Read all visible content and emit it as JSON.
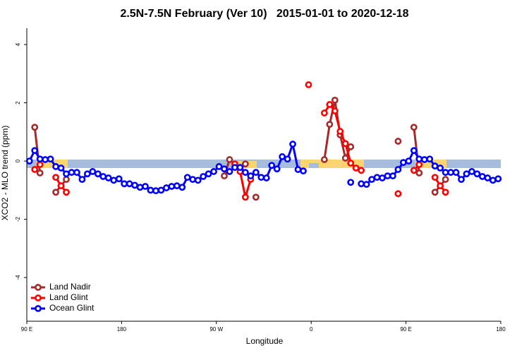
{
  "chart_data": {
    "type": "line",
    "title": "2.5N-7.5N February (Ver 10)   2015-01-01 to 2020-12-18",
    "x_label": "Longitude",
    "y_label": "XCO2 - MLO trend (ppm)",
    "xlim": [
      90,
      540
    ],
    "ylim": [
      -5.5,
      4.56
    ],
    "xticks": [
      {
        "value": 90,
        "label": "90 E"
      },
      180,
      {
        "value": 270,
        "label": "90 W"
      },
      {
        "value": 360,
        "label": "0"
      },
      {
        "value": 450,
        "label": "90 E"
      },
      {
        "value": 540,
        "label": "180"
      }
    ],
    "yticks": [
      -4,
      -2,
      0,
      2,
      4
    ],
    "legend": "bottom-left",
    "series": [
      {
        "name": "Land Nadir",
        "color": "#a52a2a",
        "x": [
          97.5,
          102.5,
          107.5,
          117.5,
          127.5,
          272.5,
          277.5,
          282.5,
          287.5,
          297.5,
          302.5,
          307.5,
          367.5,
          372.5,
          377.5,
          382.5,
          387.5,
          392.5,
          397.5,
          437.5,
          442.5,
          447.5,
          457.5,
          462.5,
          467.5,
          477.5,
          487.5
        ],
        "values": [
          1.16,
          -0.41,
          null,
          -1.07,
          -0.63,
          null,
          -0.51,
          0.05,
          null,
          -0.1,
          null,
          -1.24,
          null,
          0.05,
          1.26,
          2.09,
          0.9,
          0.1,
          0.49,
          null,
          0.68,
          null,
          1.16,
          -0.41,
          null,
          -1.07,
          -0.63
        ]
      },
      {
        "name": "Land Glint",
        "color": "#ff0000",
        "x": [
          97.5,
          102.5,
          107.5,
          117.5,
          122.5,
          127.5,
          282.5,
          287.5,
          292.5,
          297.5,
          302.5,
          352.5,
          357.5,
          362.5,
          372.5,
          377.5,
          382.5,
          387.5,
          392.5,
          397.5,
          402.5,
          407.5,
          437.5,
          442.5,
          447.5,
          457.5,
          462.5,
          467.5,
          477.5,
          482.5,
          487.5
        ],
        "values": [
          -0.29,
          -0.12,
          null,
          -0.56,
          -0.85,
          -1.07,
          null,
          -0.1,
          -0.36,
          -1.24,
          -0.63,
          null,
          2.62,
          null,
          1.65,
          1.94,
          1.72,
          1.02,
          0.6,
          -0.07,
          -0.24,
          -0.32,
          null,
          -1.12,
          null,
          -0.32,
          -0.12,
          null,
          -0.56,
          -0.85,
          -1.07
        ]
      },
      {
        "name": "Ocean Glint",
        "color": "#0000ff",
        "x": [
          92.5,
          97.5,
          102.5,
          107.5,
          112.5,
          117.5,
          122.5,
          127.5,
          132.5,
          137.5,
          142.5,
          147.5,
          152.5,
          157.5,
          162.5,
          167.5,
          172.5,
          177.5,
          182.5,
          187.5,
          192.5,
          197.5,
          202.5,
          207.5,
          212.5,
          217.5,
          222.5,
          227.5,
          232.5,
          237.5,
          242.5,
          247.5,
          252.5,
          257.5,
          262.5,
          267.5,
          272.5,
          277.5,
          282.5,
          287.5,
          292.5,
          297.5,
          302.5,
          307.5,
          312.5,
          317.5,
          322.5,
          327.5,
          332.5,
          337.5,
          342.5,
          347.5,
          352.5,
          357.5,
          397.5,
          402.5,
          407.5,
          412.5,
          417.5,
          422.5,
          427.5,
          432.5,
          437.5,
          442.5,
          447.5,
          452.5,
          457.5,
          462.5,
          467.5,
          472.5,
          477.5,
          482.5,
          487.5,
          492.5,
          497.5,
          502.5,
          507.5,
          512.5,
          517.5,
          522.5,
          527.5,
          532.5,
          537.5
        ],
        "values": [
          0,
          0.36,
          0.07,
          0.05,
          0.07,
          -0.19,
          -0.24,
          -0.44,
          -0.39,
          -0.39,
          -0.63,
          -0.44,
          -0.36,
          -0.44,
          -0.53,
          -0.58,
          -0.66,
          -0.61,
          -0.78,
          -0.78,
          -0.83,
          -0.9,
          -0.87,
          -1.0,
          -1.02,
          -1.0,
          -0.92,
          -0.87,
          -0.85,
          -0.9,
          -0.56,
          -0.63,
          -0.66,
          -0.53,
          -0.44,
          -0.36,
          -0.19,
          -0.27,
          -0.36,
          -0.22,
          -0.22,
          -0.39,
          -0.51,
          -0.39,
          -0.56,
          -0.58,
          -0.15,
          -0.27,
          0.15,
          0.07,
          0.58,
          -0.29,
          -0.34,
          null,
          -0.73,
          null,
          -0.78,
          -0.8,
          -0.63,
          -0.56,
          -0.58,
          -0.51,
          -0.51,
          -0.29,
          -0.05,
          0,
          0.36,
          0.07,
          0.05,
          0.07,
          -0.17,
          -0.24,
          -0.39,
          -0.39,
          -0.39,
          -0.63,
          -0.44,
          -0.36,
          -0.44,
          -0.53,
          -0.58,
          -0.66,
          -0.61
        ]
      }
    ]
  }
}
